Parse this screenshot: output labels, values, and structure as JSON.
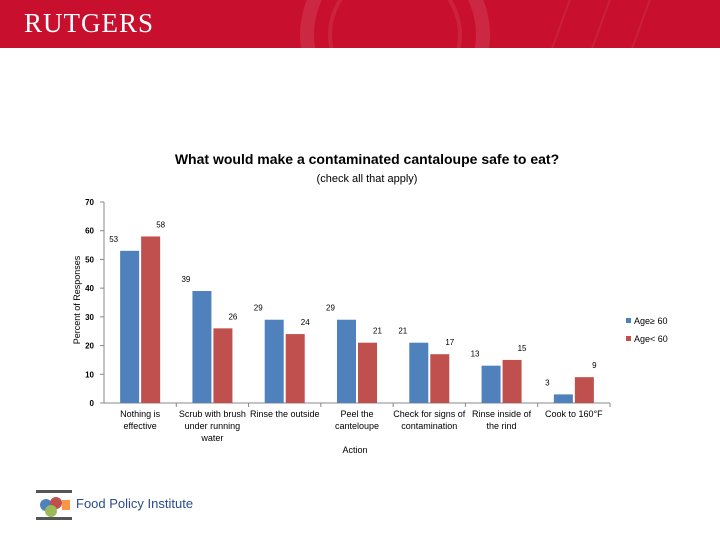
{
  "header": {
    "brand": "RUTGERS",
    "brand_color": "#c8102e"
  },
  "footer": {
    "org": "Food Policy Institute",
    "logo_icon": "food-policy-institute-logo-icon"
  },
  "chart_data": {
    "type": "bar",
    "title": "What would make a contaminated cantaloupe safe to eat?",
    "subtitle": "(check all that apply)",
    "xlabel": "Action",
    "ylabel": "Percent of Responses",
    "ylim": [
      0,
      70
    ],
    "yticks": [
      0,
      10,
      20,
      30,
      40,
      50,
      60,
      70
    ],
    "grid": false,
    "legend_position": "right",
    "categories": [
      [
        "Nothing is",
        "effective"
      ],
      [
        "Scrub with brush",
        "under running",
        "water"
      ],
      [
        "Rinse the outside"
      ],
      [
        "Peel the",
        "canteloupe"
      ],
      [
        "Check for signs of",
        "contamination"
      ],
      [
        "Rinse inside of",
        "the rind"
      ],
      [
        "Cook to 160°F"
      ]
    ],
    "series": [
      {
        "name": "Age≥ 60",
        "color": "#4f81bd",
        "values": [
          53,
          39,
          29,
          29,
          21,
          13,
          3
        ]
      },
      {
        "name": "Age< 60",
        "color": "#c0504d",
        "values": [
          58,
          26,
          24,
          21,
          17,
          15,
          9
        ]
      }
    ]
  }
}
